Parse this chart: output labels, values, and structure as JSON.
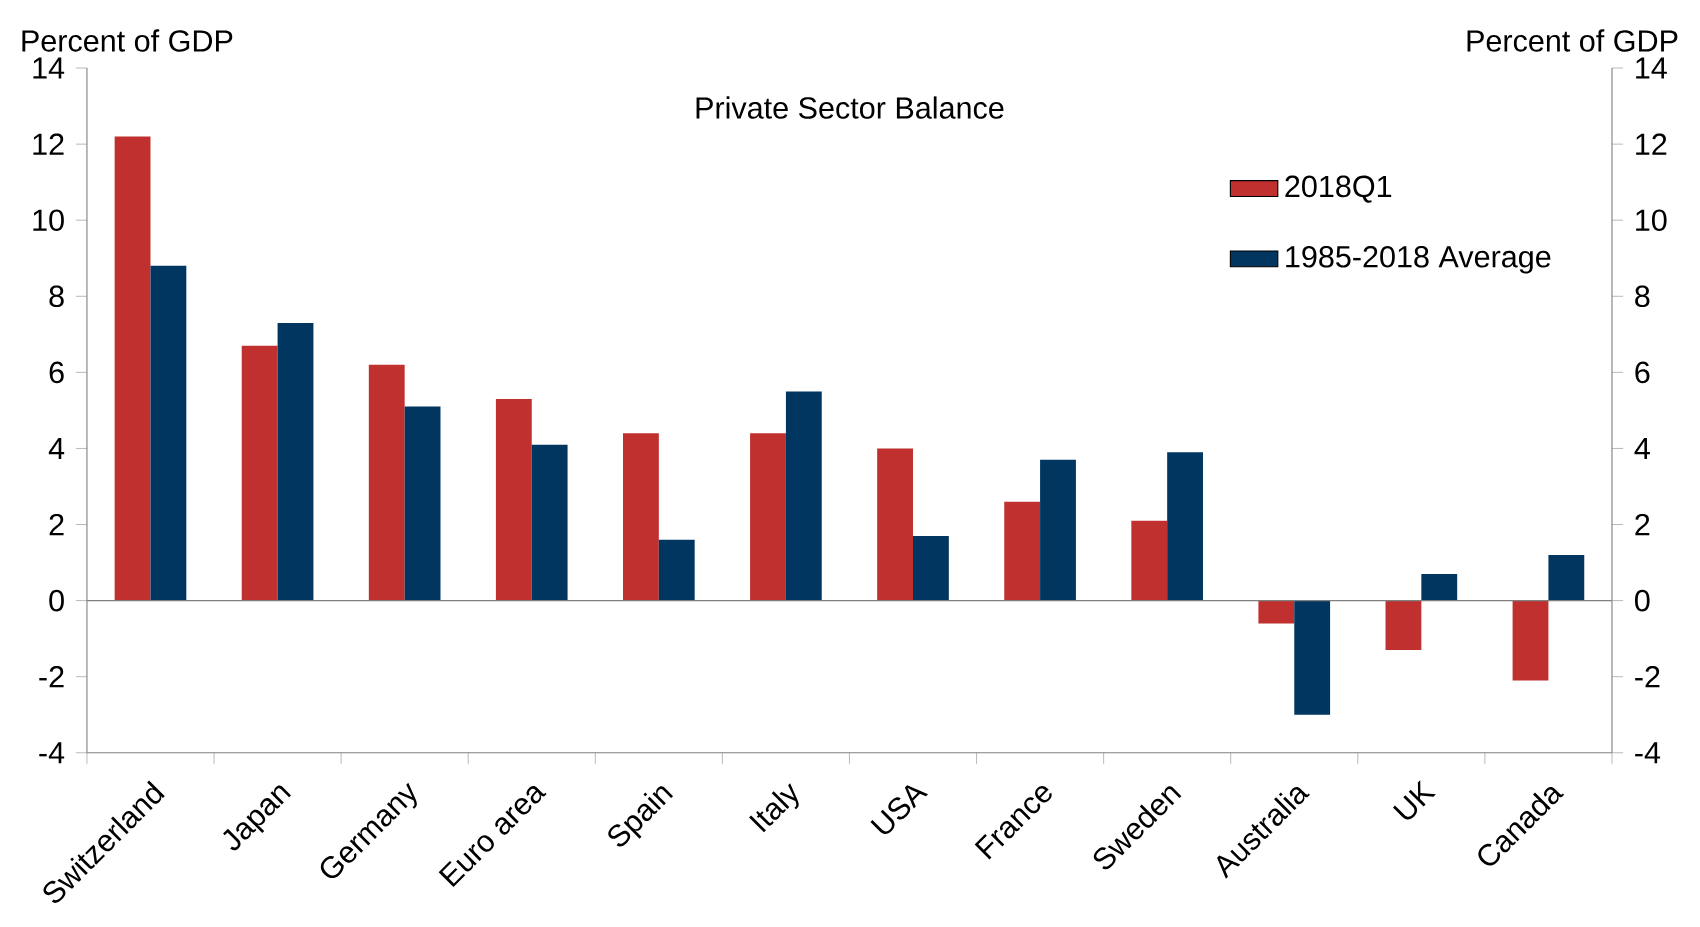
{
  "chart_data": {
    "type": "bar",
    "title": "Private Sector Balance",
    "ylabel": "Percent of GDP",
    "y2label": "Percent of GDP",
    "categories": [
      "Switzerland",
      "Japan",
      "Germany",
      "Euro area",
      "Spain",
      "Italy",
      "USA",
      "France",
      "Sweden",
      "Australia",
      "UK",
      "Canada"
    ],
    "series": [
      {
        "name": "2018Q1",
        "color": "#c0302f",
        "values": [
          12.2,
          6.7,
          6.2,
          5.3,
          4.4,
          4.4,
          4.0,
          2.6,
          2.1,
          -0.6,
          -1.3,
          -2.1
        ]
      },
      {
        "name": "1985-2018 Average",
        "color": "#003660",
        "values": [
          8.8,
          7.3,
          5.1,
          4.1,
          1.6,
          5.5,
          1.7,
          3.7,
          3.9,
          -3.0,
          0.7,
          1.2
        ]
      }
    ],
    "ylim": [
      -4,
      14
    ],
    "yticks": [
      -4,
      -2,
      0,
      2,
      4,
      6,
      8,
      10,
      12,
      14
    ],
    "y2lim": [
      -4,
      14
    ],
    "y2ticks": [
      -4,
      -2,
      0,
      2,
      4,
      6,
      8,
      10,
      12,
      14
    ],
    "legend": "top right"
  }
}
